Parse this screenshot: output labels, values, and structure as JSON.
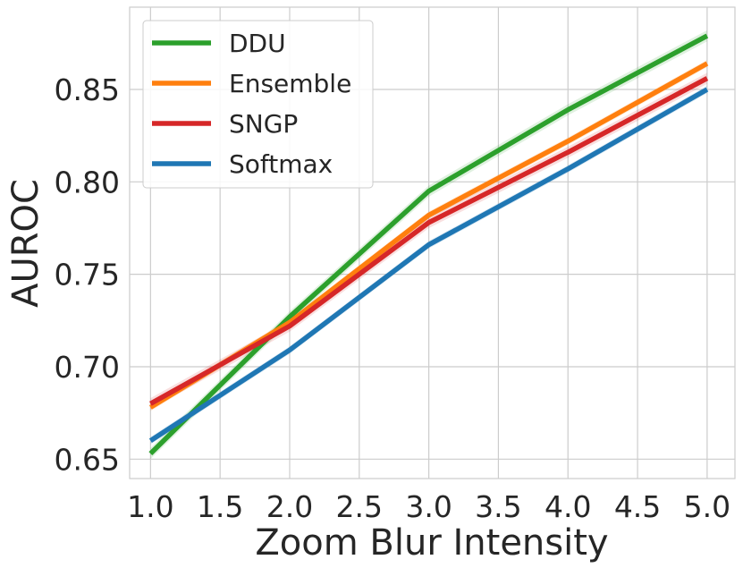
{
  "chart_data": {
    "type": "line",
    "title": "",
    "xlabel": "Zoom Blur Intensity",
    "ylabel": "AUROC",
    "x": [
      1,
      2,
      3,
      4,
      5
    ],
    "xlim": [
      0.85,
      5.2
    ],
    "ylim": [
      0.6395,
      0.8945
    ],
    "xticks": [
      1.0,
      1.5,
      2.0,
      2.5,
      3.0,
      3.5,
      4.0,
      4.5,
      5.0
    ],
    "xtick_labels": [
      "1.0",
      "1.5",
      "2.0",
      "2.5",
      "3.0",
      "3.5",
      "4.0",
      "4.5",
      "5.0"
    ],
    "yticks": [
      0.65,
      0.7,
      0.75,
      0.8,
      0.85
    ],
    "ytick_labels": [
      "0.65",
      "0.70",
      "0.75",
      "0.80",
      "0.85"
    ],
    "grid": true,
    "legend_position": "top-left",
    "series": [
      {
        "name": "DDU",
        "color": "#2ca02c",
        "values": [
          0.653,
          0.727,
          0.795,
          0.839,
          0.879
        ],
        "band": 0.003
      },
      {
        "name": "Ensemble",
        "color": "#ff7f0e",
        "values": [
          0.678,
          0.724,
          0.782,
          0.822,
          0.864
        ],
        "band": 0.002
      },
      {
        "name": "SNGP",
        "color": "#d62728",
        "values": [
          0.68,
          0.722,
          0.778,
          0.816,
          0.856
        ],
        "band": 0.003
      },
      {
        "name": "Softmax",
        "color": "#1f77b4",
        "values": [
          0.66,
          0.709,
          0.766,
          0.807,
          0.85
        ],
        "band": 0.002
      }
    ]
  }
}
